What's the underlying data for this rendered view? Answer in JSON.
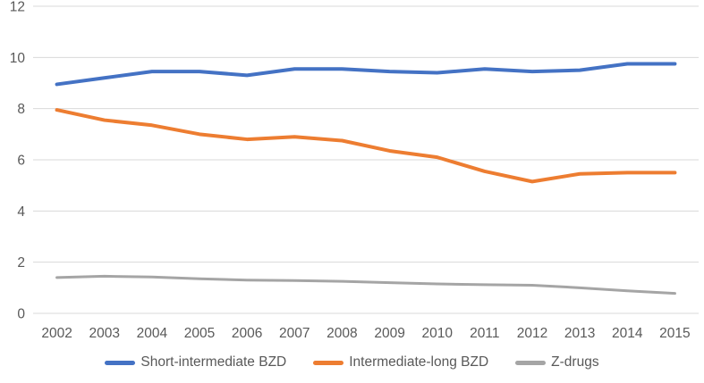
{
  "chart_data": {
    "type": "line",
    "title": "",
    "xlabel": "",
    "ylabel": "",
    "x": [
      2002,
      2003,
      2004,
      2005,
      2006,
      2007,
      2008,
      2009,
      2010,
      2011,
      2012,
      2013,
      2014,
      2015
    ],
    "series": [
      {
        "name": "Short-intermediate BZD",
        "color": "#4472C4",
        "values": [
          8.95,
          9.2,
          9.45,
          9.45,
          9.3,
          9.55,
          9.55,
          9.45,
          9.4,
          9.55,
          9.45,
          9.5,
          9.75,
          9.75
        ]
      },
      {
        "name": "Intermediate-long BZD",
        "color": "#ED7D31",
        "values": [
          7.95,
          7.55,
          7.35,
          7.0,
          6.8,
          6.9,
          6.75,
          6.35,
          6.1,
          5.55,
          5.15,
          5.45,
          5.5,
          5.5
        ]
      },
      {
        "name": "Z-drugs",
        "color": "#A5A5A5",
        "values": [
          1.4,
          1.45,
          1.42,
          1.35,
          1.3,
          1.28,
          1.25,
          1.2,
          1.15,
          1.12,
          1.1,
          1.0,
          0.88,
          0.78
        ]
      }
    ],
    "ylim": [
      0,
      12
    ],
    "yticks": [
      0,
      2,
      4,
      6,
      8,
      10,
      12
    ],
    "grid": true,
    "legend_position": "bottom",
    "gridline_color": "#D9D9D9",
    "tick_label_color": "#595959"
  }
}
